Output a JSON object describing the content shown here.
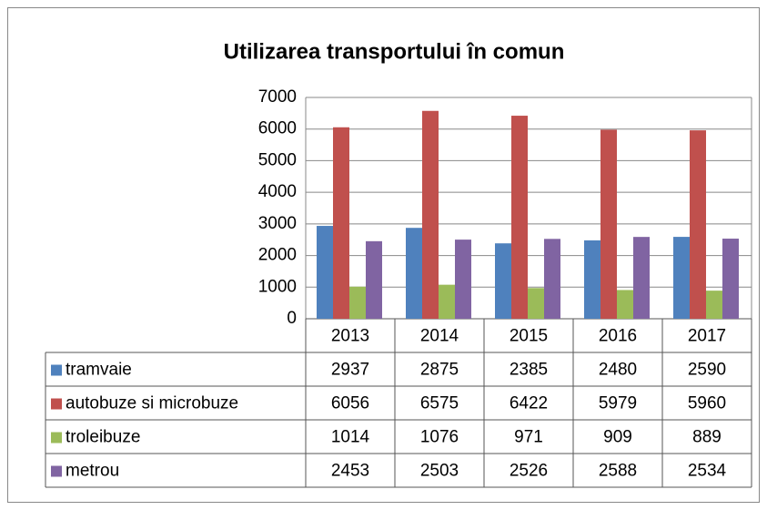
{
  "chart_data": {
    "type": "bar",
    "title": "Utilizarea transportului în comun",
    "categories": [
      "2013",
      "2014",
      "2015",
      "2016",
      "2017"
    ],
    "series": [
      {
        "name": "tramvaie",
        "color": "#4f81bd",
        "values": [
          2937,
          2875,
          2385,
          2480,
          2590
        ]
      },
      {
        "name": "autobuze si microbuze",
        "color": "#c0504d",
        "values": [
          6056,
          6575,
          6422,
          5979,
          5960
        ]
      },
      {
        "name": "troleibuze",
        "color": "#9bbb59",
        "values": [
          1014,
          1076,
          971,
          909,
          889
        ]
      },
      {
        "name": "metrou",
        "color": "#8064a2",
        "values": [
          2453,
          2503,
          2526,
          2588,
          2534
        ]
      }
    ],
    "ylim": [
      0,
      7000
    ],
    "yticks": [
      0,
      1000,
      2000,
      3000,
      4000,
      5000,
      6000,
      7000
    ],
    "grid": true
  }
}
